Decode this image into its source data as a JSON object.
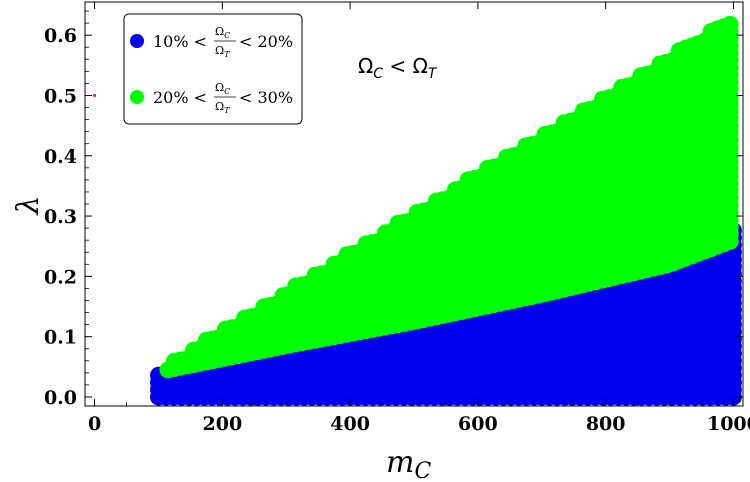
{
  "chart_data": {
    "type": "scatter",
    "title": "",
    "xlabel": "m",
    "xlabel_sub": "C",
    "ylabel": "λ",
    "xlim": [
      -15,
      1015
    ],
    "ylim": [
      -0.015,
      0.655
    ],
    "xticks": [
      0,
      200,
      400,
      600,
      800,
      1000
    ],
    "xtick_labels": [
      "0",
      "200",
      "400",
      "600",
      "800",
      "1000"
    ],
    "yticks": [
      0.0,
      0.1,
      0.2,
      0.3,
      0.4,
      0.5,
      0.6
    ],
    "ytick_labels": [
      "0.0",
      "0.1",
      "0.2",
      "0.3",
      "0.4",
      "0.5",
      "0.6"
    ],
    "grid": false,
    "legend_position": "top-left",
    "annotation": {
      "lhs": "Ω",
      "lhs_sub": "C",
      "op": " < ",
      "rhs": "Ω",
      "rhs_sub": "T"
    },
    "series": [
      {
        "name_prefix": "10% <",
        "name_num": "Ω",
        "name_num_sub": "C",
        "name_den": "Ω",
        "name_den_sub": "T",
        "name_suffix": "< 20%",
        "color": "#0000ee",
        "description": "dense band of points below the green region",
        "lower_envelope": [
          [
            100,
            0.0
          ],
          [
            1000,
            0.0
          ]
        ],
        "upper_envelope": [
          [
            100,
            0.045
          ],
          [
            300,
            0.08
          ],
          [
            500,
            0.12
          ],
          [
            700,
            0.16
          ],
          [
            900,
            0.21
          ],
          [
            1000,
            0.28
          ]
        ]
      },
      {
        "name_prefix": "20% <",
        "name_num": "Ω",
        "name_num_sub": "C",
        "name_den": "Ω",
        "name_den_sub": "T",
        "name_suffix": "< 30%",
        "color": "#00ff00",
        "description": "wedge-shaped band above the blue region",
        "lower_envelope": [
          [
            115,
            0.045
          ],
          [
            300,
            0.085
          ],
          [
            500,
            0.125
          ],
          [
            700,
            0.17
          ],
          [
            900,
            0.22
          ],
          [
            1000,
            0.26
          ]
        ],
        "upper_envelope": [
          [
            115,
            0.055
          ],
          [
            1000,
            0.63
          ]
        ]
      }
    ],
    "marker_small": {
      "x": 0,
      "y": 0.5,
      "color": "#ee1144"
    }
  }
}
